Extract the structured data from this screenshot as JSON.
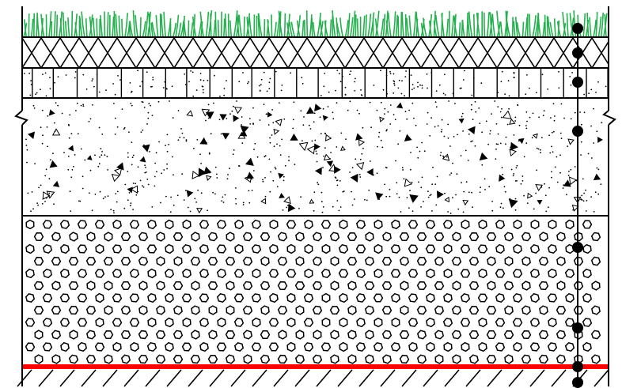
{
  "diagram": {
    "type": "soil-cross-section",
    "layers": [
      {
        "name": "grass",
        "pattern": "grass",
        "color": "#22b14c"
      },
      {
        "name": "crosshatch-layer",
        "pattern": "crosshatch",
        "color": "#000000"
      },
      {
        "name": "vertical-block-layer",
        "pattern": "vertical-blocks-with-dots",
        "color": "#000000"
      },
      {
        "name": "concrete-layer",
        "pattern": "stippled-triangles",
        "color": "#000000"
      },
      {
        "name": "gravel-layer",
        "pattern": "hexagons",
        "color": "#000000"
      },
      {
        "name": "base-line",
        "pattern": "solid",
        "color": "#ff0000"
      },
      {
        "name": "ground",
        "pattern": "diagonal-hatch",
        "color": "#000000"
      }
    ],
    "measurement_points": 8,
    "break_marks": [
      "left",
      "right"
    ]
  }
}
